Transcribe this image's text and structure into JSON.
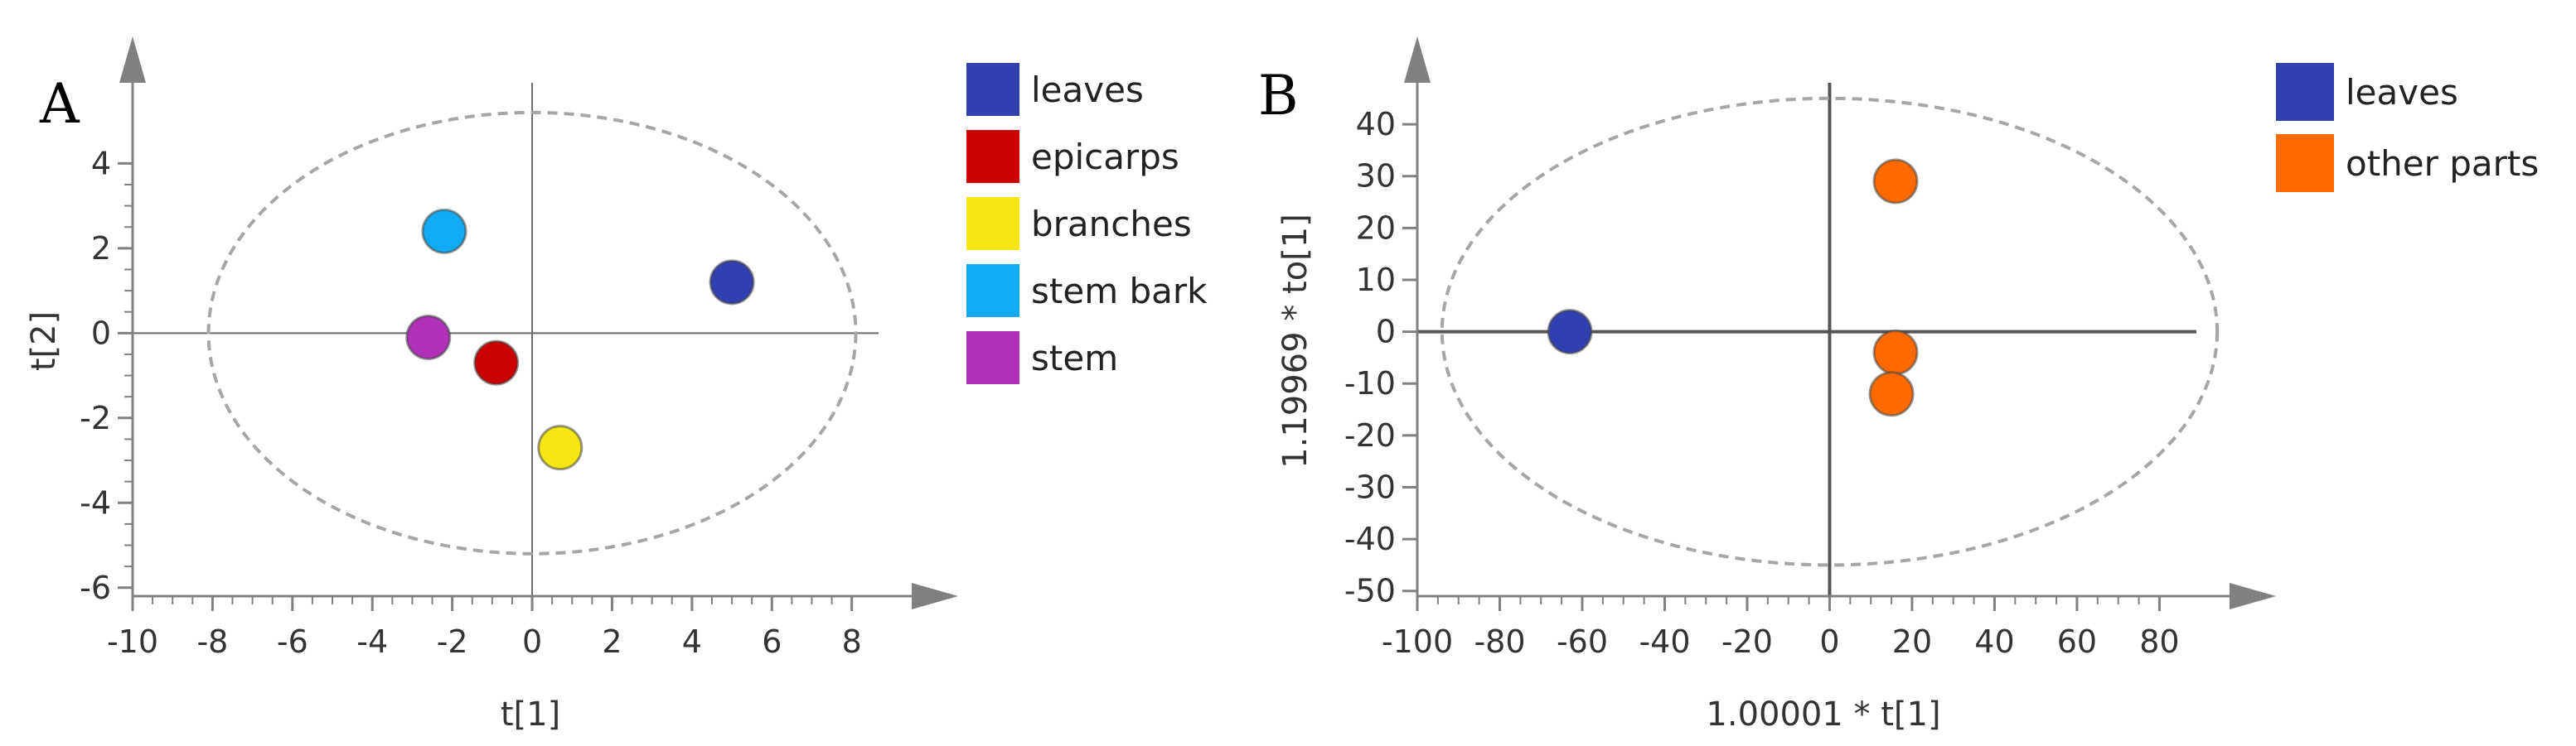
{
  "chart_data": [
    {
      "type": "scatter",
      "panel_label": "A",
      "xlabel": "t[1]",
      "ylabel": "t[2]",
      "xlim": [
        -10,
        9.5
      ],
      "ylim": [
        -6.2,
        5.9
      ],
      "xticks": [
        -10,
        -8,
        -6,
        -4,
        -2,
        0,
        2,
        4,
        6,
        8
      ],
      "yticks": [
        -6,
        -4,
        -2,
        0,
        2,
        4
      ],
      "ellipse": {
        "cx": 0,
        "cy": 0,
        "rx": 8.1,
        "ry": 5.2
      },
      "legend_position": "right",
      "series": [
        {
          "name": "leaves",
          "color": "#3040b0",
          "points": [
            [
              5.0,
              1.2
            ]
          ]
        },
        {
          "name": "epicarps",
          "color": "#cc0000",
          "points": [
            [
              -0.9,
              -0.7
            ]
          ]
        },
        {
          "name": "branches",
          "color": "#f5e614",
          "points": [
            [
              0.7,
              -2.7
            ]
          ]
        },
        {
          "name": "stem bark",
          "color": "#12aaf0",
          "points": [
            [
              -2.2,
              2.4
            ]
          ]
        },
        {
          "name": "stem",
          "color": "#b030b8",
          "points": [
            [
              -2.6,
              -0.1
            ]
          ]
        }
      ]
    },
    {
      "type": "scatter",
      "panel_label": "B",
      "xlabel": "1.00001 * t[1]",
      "ylabel": "1.19969 * to[1]",
      "xlim": [
        -100,
        97
      ],
      "ylim": [
        -51,
        48
      ],
      "xticks": [
        -100,
        -80,
        -60,
        -40,
        -20,
        0,
        20,
        40,
        60,
        80
      ],
      "yticks": [
        -50,
        -40,
        -30,
        -20,
        -10,
        0,
        10,
        20,
        30,
        40
      ],
      "ellipse": {
        "cx": 0,
        "cy": 0,
        "rx": 94,
        "ry": 45
      },
      "legend_position": "right",
      "series": [
        {
          "name": "leaves",
          "color": "#3040b0",
          "points": [
            [
              -63,
              0
            ]
          ]
        },
        {
          "name": "other parts",
          "color": "#ff6a00",
          "points": [
            [
              16,
              29
            ],
            [
              16,
              -4
            ],
            [
              15,
              -12
            ]
          ]
        }
      ]
    }
  ]
}
